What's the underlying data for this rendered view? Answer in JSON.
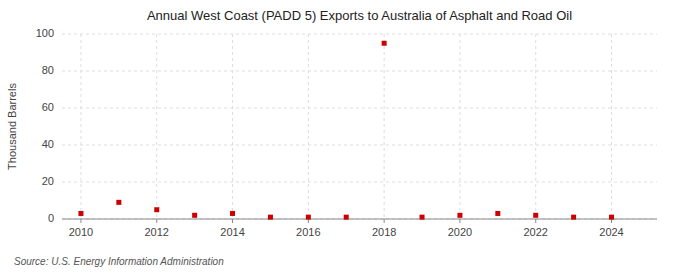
{
  "chart_data": {
    "type": "scatter",
    "title": "Annual West Coast (PADD 5) Exports to Australia of Asphalt and Road Oil",
    "y_label": "Thousand Barrels",
    "annotations": [
      "Source: U.S. Energy Information Administration"
    ],
    "x": [
      2010,
      2011,
      2012,
      2013,
      2014,
      2015,
      2016,
      2017,
      2018,
      2019,
      2020,
      2021,
      2022,
      2023,
      2024
    ],
    "values": [
      3,
      9,
      5,
      2,
      3,
      1,
      1,
      1,
      95,
      1,
      2,
      3,
      2,
      1,
      1
    ],
    "color": "#cc0000",
    "marker": "square",
    "xlim": [
      2009.5,
      2025.2
    ],
    "ylim": [
      0,
      100
    ],
    "xticks": [
      2010,
      2012,
      2014,
      2016,
      2018,
      2020,
      2022,
      2024
    ],
    "yticks": [
      0,
      20,
      40,
      60,
      80,
      100
    ],
    "grid": true
  }
}
